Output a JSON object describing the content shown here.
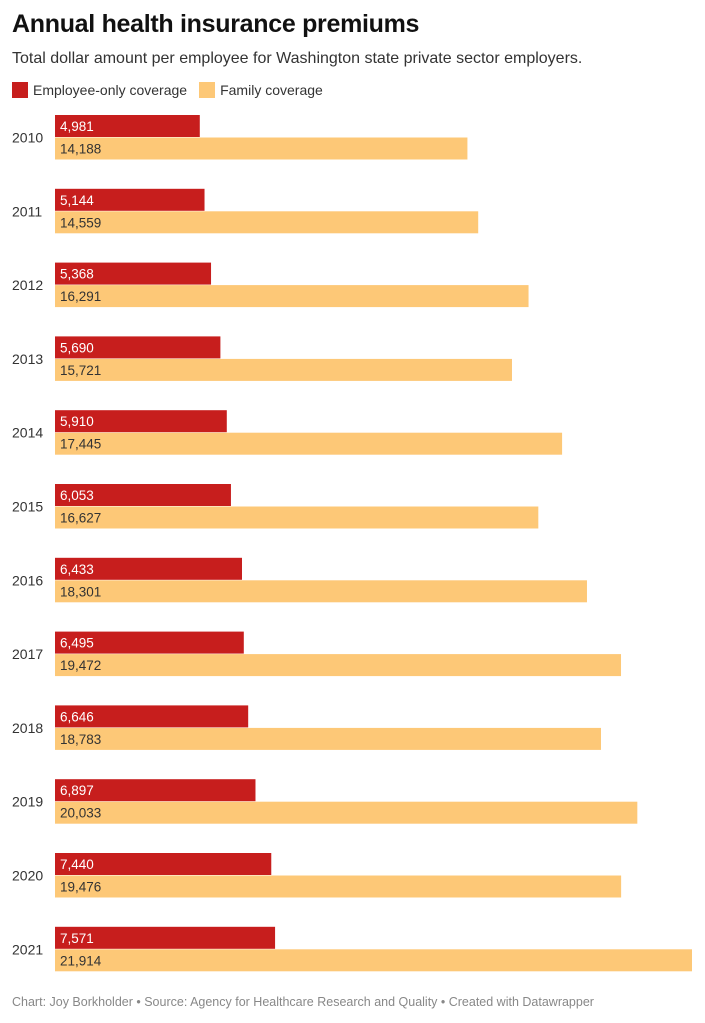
{
  "title": "Annual health insurance premiums",
  "subtitle": "Total dollar amount per employee for Washington state private sector employers.",
  "footer": "Chart: Joy Borkholder • Source: Agency for Healthcare Research and Quality • Created with Datawrapper",
  "chart_data": {
    "type": "bar",
    "orientation": "horizontal",
    "title": "Annual health insurance premiums",
    "categories": [
      "2010",
      "2011",
      "2012",
      "2013",
      "2014",
      "2015",
      "2016",
      "2017",
      "2018",
      "2019",
      "2020",
      "2021"
    ],
    "series": [
      {
        "name": "Employee-only coverage",
        "color": "#c71e1d",
        "label_color": "#ffffff",
        "values": [
          4981,
          5144,
          5368,
          5690,
          5910,
          6053,
          6433,
          6495,
          6646,
          6897,
          7440,
          7571
        ],
        "labels": [
          "4,981",
          "5,144",
          "5,368",
          "5,690",
          "5,910",
          "6,053",
          "6,433",
          "6,495",
          "6,646",
          "6,897",
          "7,440",
          "7,571"
        ]
      },
      {
        "name": "Family coverage",
        "color": "#fdc877",
        "label_color": "#333333",
        "values": [
          14188,
          14559,
          16291,
          15721,
          17445,
          16627,
          18301,
          19472,
          18783,
          20033,
          19476,
          21914
        ],
        "labels": [
          "14,188",
          "14,559",
          "16,291",
          "15,721",
          "17,445",
          "16,627",
          "18,301",
          "19,472",
          "18,783",
          "20,033",
          "19,476",
          "21,914"
        ]
      }
    ],
    "xlim": [
      0,
      21914
    ],
    "legend": "top-left",
    "grid": false
  }
}
